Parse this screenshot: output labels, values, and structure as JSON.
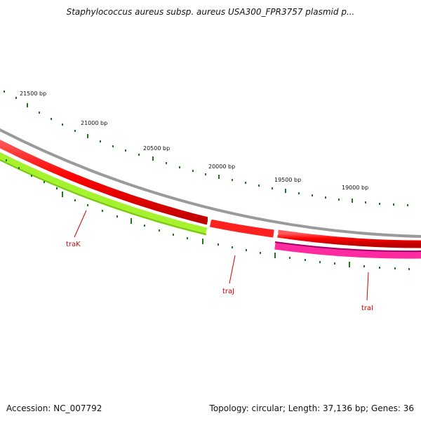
{
  "header": {
    "title": "Staphylococcus aureus subsp. aureus USA300_FPR3757 plasmid p..."
  },
  "footer": {
    "accession": "Accession: NC_007792",
    "summary": "Topology: circular; Length: 37,136 bp; Genes: 36"
  },
  "map": {
    "ruler_labels": [
      "21500 bp",
      "21000 bp",
      "20500 bp",
      "20000 bp",
      "19500 bp",
      "19000 bp"
    ],
    "genes": [
      {
        "name": "traK",
        "strand": "forward",
        "color": "#a6f22c"
      },
      {
        "name": "traJ",
        "strand": "reverse",
        "color": "#ff3b3b"
      },
      {
        "name": "traI",
        "strand": "forward",
        "color": "#ff2aa0"
      }
    ],
    "colors": {
      "backbone": "#808080",
      "cds_ring": "#ee0000",
      "tick": "#1a7a1a",
      "label_line": "#cc0000"
    }
  }
}
